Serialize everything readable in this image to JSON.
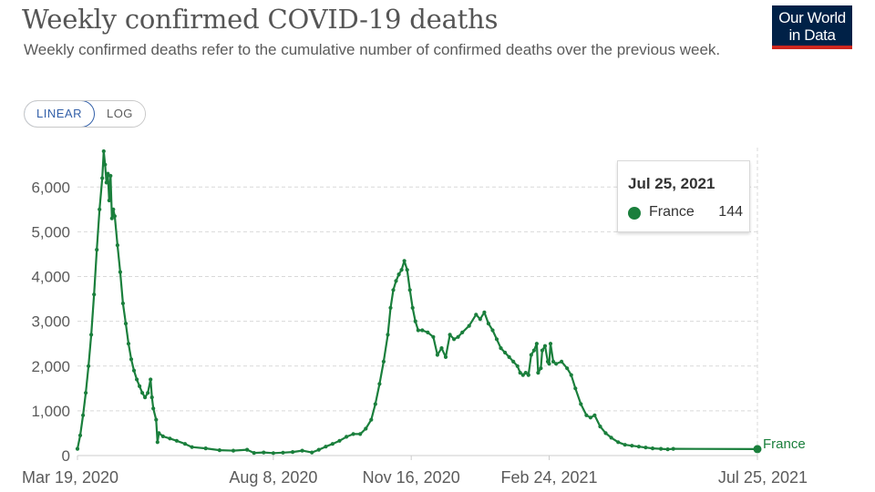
{
  "header": {
    "title": "Weekly confirmed COVID-19 deaths",
    "subtitle": "Weekly confirmed deaths refer to the cumulative number of confirmed deaths over the previous week.",
    "logo_line1": "Our World",
    "logo_line2": "in Data"
  },
  "controls": {
    "linear_label": "LINEAR",
    "log_label": "LOG",
    "selected": "LINEAR"
  },
  "tooltip": {
    "date": "Jul 25, 2021",
    "series": "France",
    "value": "144"
  },
  "colors": {
    "series": "#1a7f3c",
    "grid": "#d9d9d9",
    "axis_text": "#5b5b5b",
    "logo_bg": "#002147",
    "logo_accent": "#ce261e",
    "toggle_active": "#3360a9"
  },
  "chart_data": {
    "type": "line",
    "title": "Weekly confirmed COVID-19 deaths",
    "xlabel": "",
    "ylabel": "",
    "ylim": [
      0,
      6800
    ],
    "xlim": [
      "2020-03-19",
      "2021-07-25"
    ],
    "yticks": [
      0,
      1000,
      2000,
      3000,
      4000,
      5000,
      6000
    ],
    "ytick_labels": [
      "0",
      "1,000",
      "2,000",
      "3,000",
      "4,000",
      "5,000",
      "6,000"
    ],
    "xticks": [
      "2020-03-19",
      "2020-08-08",
      "2020-11-16",
      "2021-02-24",
      "2021-07-25"
    ],
    "xtick_labels": [
      "Mar 19, 2020",
      "Aug 8, 2020",
      "Nov 16, 2020",
      "Feb 24, 2021",
      "Jul 25, 2021"
    ],
    "grid": true,
    "legend": "end-of-line label",
    "series": [
      {
        "name": "France",
        "points": [
          [
            "2020-03-19",
            150
          ],
          [
            "2020-03-21",
            450
          ],
          [
            "2020-03-23",
            900
          ],
          [
            "2020-03-25",
            1400
          ],
          [
            "2020-03-27",
            2000
          ],
          [
            "2020-03-29",
            2700
          ],
          [
            "2020-03-31",
            3600
          ],
          [
            "2020-04-02",
            4600
          ],
          [
            "2020-04-04",
            5500
          ],
          [
            "2020-04-06",
            6200
          ],
          [
            "2020-04-07",
            6800
          ],
          [
            "2020-04-08",
            6500
          ],
          [
            "2020-04-09",
            6100
          ],
          [
            "2020-04-10",
            6300
          ],
          [
            "2020-04-11",
            5700
          ],
          [
            "2020-04-12",
            6250
          ],
          [
            "2020-04-13",
            5300
          ],
          [
            "2020-04-14",
            5500
          ],
          [
            "2020-04-15",
            5350
          ],
          [
            "2020-04-17",
            4700
          ],
          [
            "2020-04-19",
            4100
          ],
          [
            "2020-04-21",
            3400
          ],
          [
            "2020-04-23",
            2950
          ],
          [
            "2020-04-25",
            2500
          ],
          [
            "2020-04-27",
            2150
          ],
          [
            "2020-04-29",
            1900
          ],
          [
            "2020-05-01",
            1700
          ],
          [
            "2020-05-03",
            1550
          ],
          [
            "2020-05-05",
            1400
          ],
          [
            "2020-05-07",
            1300
          ],
          [
            "2020-05-09",
            1400
          ],
          [
            "2020-05-11",
            1700
          ],
          [
            "2020-05-12",
            1300
          ],
          [
            "2020-05-13",
            1050
          ],
          [
            "2020-05-15",
            800
          ],
          [
            "2020-05-16",
            300
          ],
          [
            "2020-05-17",
            500
          ],
          [
            "2020-05-20",
            430
          ],
          [
            "2020-05-25",
            380
          ],
          [
            "2020-05-30",
            330
          ],
          [
            "2020-06-05",
            260
          ],
          [
            "2020-06-10",
            190
          ],
          [
            "2020-06-20",
            160
          ],
          [
            "2020-06-30",
            120
          ],
          [
            "2020-07-10",
            110
          ],
          [
            "2020-07-20",
            130
          ],
          [
            "2020-07-25",
            60
          ],
          [
            "2020-08-01",
            70
          ],
          [
            "2020-08-08",
            55
          ],
          [
            "2020-08-15",
            65
          ],
          [
            "2020-08-22",
            80
          ],
          [
            "2020-08-29",
            110
          ],
          [
            "2020-09-05",
            70
          ],
          [
            "2020-09-10",
            130
          ],
          [
            "2020-09-15",
            200
          ],
          [
            "2020-09-20",
            260
          ],
          [
            "2020-09-25",
            330
          ],
          [
            "2020-09-30",
            420
          ],
          [
            "2020-10-05",
            480
          ],
          [
            "2020-10-10",
            480
          ],
          [
            "2020-10-14",
            600
          ],
          [
            "2020-10-18",
            800
          ],
          [
            "2020-10-21",
            1150
          ],
          [
            "2020-10-24",
            1600
          ],
          [
            "2020-10-27",
            2100
          ],
          [
            "2020-10-30",
            2700
          ],
          [
            "2020-11-01",
            3300
          ],
          [
            "2020-11-03",
            3700
          ],
          [
            "2020-11-05",
            3900
          ],
          [
            "2020-11-07",
            4050
          ],
          [
            "2020-11-09",
            4150
          ],
          [
            "2020-11-11",
            4350
          ],
          [
            "2020-11-13",
            4150
          ],
          [
            "2020-11-15",
            3700
          ],
          [
            "2020-11-17",
            3300
          ],
          [
            "2020-11-19",
            3000
          ],
          [
            "2020-11-21",
            2800
          ],
          [
            "2020-11-24",
            2800
          ],
          [
            "2020-11-28",
            2750
          ],
          [
            "2020-12-02",
            2650
          ],
          [
            "2020-12-05",
            2250
          ],
          [
            "2020-12-08",
            2400
          ],
          [
            "2020-12-11",
            2200
          ],
          [
            "2020-12-14",
            2700
          ],
          [
            "2020-12-17",
            2600
          ],
          [
            "2020-12-20",
            2650
          ],
          [
            "2020-12-23",
            2750
          ],
          [
            "2020-12-28",
            2900
          ],
          [
            "2021-01-02",
            3150
          ],
          [
            "2021-01-05",
            3050
          ],
          [
            "2021-01-08",
            3200
          ],
          [
            "2021-01-11",
            2950
          ],
          [
            "2021-01-14",
            2800
          ],
          [
            "2021-01-17",
            2600
          ],
          [
            "2021-01-20",
            2400
          ],
          [
            "2021-01-23",
            2300
          ],
          [
            "2021-01-26",
            2200
          ],
          [
            "2021-01-29",
            2100
          ],
          [
            "2021-02-01",
            2000
          ],
          [
            "2021-02-03",
            1850
          ],
          [
            "2021-02-05",
            1800
          ],
          [
            "2021-02-07",
            1850
          ],
          [
            "2021-02-09",
            1800
          ],
          [
            "2021-02-11",
            2250
          ],
          [
            "2021-02-13",
            2350
          ],
          [
            "2021-02-15",
            2500
          ],
          [
            "2021-02-16",
            1850
          ],
          [
            "2021-02-18",
            1950
          ],
          [
            "2021-02-19",
            2350
          ],
          [
            "2021-02-21",
            2450
          ],
          [
            "2021-02-23",
            2100
          ],
          [
            "2021-02-24",
            2050
          ],
          [
            "2021-02-25",
            2500
          ],
          [
            "2021-02-27",
            2100
          ],
          [
            "2021-03-01",
            2050
          ],
          [
            "2021-03-05",
            2100
          ],
          [
            "2021-03-09",
            1950
          ],
          [
            "2021-03-12",
            1800
          ],
          [
            "2021-03-15",
            1500
          ],
          [
            "2021-03-19",
            1150
          ],
          [
            "2021-03-23",
            900
          ],
          [
            "2021-03-26",
            850
          ],
          [
            "2021-03-29",
            900
          ],
          [
            "2021-04-02",
            650
          ],
          [
            "2021-04-06",
            500
          ],
          [
            "2021-04-10",
            400
          ],
          [
            "2021-04-15",
            300
          ],
          [
            "2021-04-20",
            240
          ],
          [
            "2021-04-25",
            220
          ],
          [
            "2021-04-30",
            200
          ],
          [
            "2021-05-05",
            180
          ],
          [
            "2021-05-10",
            160
          ],
          [
            "2021-05-16",
            150
          ],
          [
            "2021-05-21",
            140
          ],
          [
            "2021-05-25",
            150
          ],
          [
            "2021-07-25",
            144
          ]
        ]
      }
    ]
  }
}
